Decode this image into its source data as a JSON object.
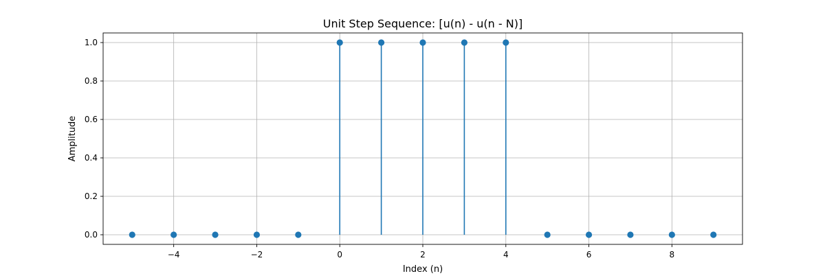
{
  "chart_data": {
    "type": "stem",
    "title": "Unit Step Sequence: [u(n) - u(n - N)]",
    "xlabel": "Index (n)",
    "ylabel": "Amplitude",
    "x": [
      -5,
      -4,
      -3,
      -2,
      -1,
      0,
      1,
      2,
      3,
      4,
      5,
      6,
      7,
      8,
      9
    ],
    "y": [
      0,
      0,
      0,
      0,
      0,
      1,
      1,
      1,
      1,
      1,
      0,
      0,
      0,
      0,
      0
    ],
    "xlim": [
      -5.7,
      9.7
    ],
    "ylim": [
      -0.05,
      1.05
    ],
    "xticks": [
      -4,
      -2,
      0,
      2,
      4,
      6,
      8
    ],
    "xtick_labels": [
      "−4",
      "−2",
      "0",
      "2",
      "4",
      "6",
      "8"
    ],
    "yticks": [
      0.0,
      0.2,
      0.4,
      0.6,
      0.8,
      1.0
    ],
    "ytick_labels": [
      "0.0",
      "0.2",
      "0.4",
      "0.6",
      "0.8",
      "1.0"
    ],
    "grid": true,
    "color": "#1f77b4"
  }
}
